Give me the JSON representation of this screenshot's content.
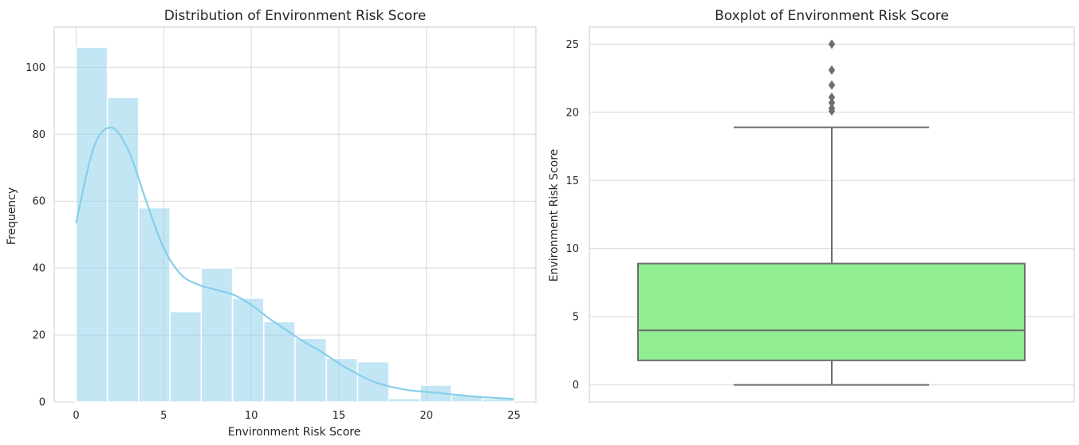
{
  "chart_data": [
    {
      "type": "bar",
      "title": "Distribution of Environment Risk Score",
      "xlabel": "Environment Risk Score",
      "ylabel": "Frequency",
      "xlim": [
        -1.25,
        26.25
      ],
      "ylim": [
        0,
        112
      ],
      "xticks": [
        0,
        5,
        10,
        15,
        20,
        25
      ],
      "yticks": [
        0,
        20,
        40,
        60,
        80,
        100
      ],
      "grid": true,
      "bar_color": "#87CEEB",
      "bins": [
        {
          "start": 0.0,
          "end": 1.786,
          "count": 106
        },
        {
          "start": 1.786,
          "end": 3.571,
          "count": 91
        },
        {
          "start": 3.571,
          "end": 5.357,
          "count": 58
        },
        {
          "start": 5.357,
          "end": 7.143,
          "count": 27
        },
        {
          "start": 7.143,
          "end": 8.929,
          "count": 40
        },
        {
          "start": 8.929,
          "end": 10.714,
          "count": 31
        },
        {
          "start": 10.714,
          "end": 12.5,
          "count": 24
        },
        {
          "start": 12.5,
          "end": 14.286,
          "count": 19
        },
        {
          "start": 14.286,
          "end": 16.071,
          "count": 13
        },
        {
          "start": 16.071,
          "end": 17.857,
          "count": 12
        },
        {
          "start": 17.857,
          "end": 19.643,
          "count": 1
        },
        {
          "start": 19.643,
          "end": 21.429,
          "count": 5
        },
        {
          "start": 21.429,
          "end": 23.214,
          "count": 2
        },
        {
          "start": 23.214,
          "end": 25.0,
          "count": 1
        }
      ],
      "kde": {
        "x": [
          0,
          1,
          2,
          3,
          4,
          5,
          6,
          7,
          8,
          9,
          10,
          11,
          12,
          13,
          14,
          15,
          16,
          17,
          18,
          19,
          20,
          21,
          22,
          23,
          24,
          25
        ],
        "y": [
          53.5,
          76,
          82,
          75,
          60,
          46,
          38,
          35,
          33.5,
          32,
          29,
          25,
          21.5,
          18,
          15,
          11.5,
          8.5,
          6,
          4.5,
          3.5,
          3,
          2.5,
          2,
          1.5,
          1.2,
          0.9
        ]
      }
    },
    {
      "type": "boxplot",
      "title": "Boxplot of Environment Risk Score",
      "ylabel": "Environment Risk Score",
      "ylim": [
        -1.25,
        26.25
      ],
      "yticks": [
        0,
        5,
        10,
        15,
        20,
        25
      ],
      "grid": true,
      "box_color": "#90EE90",
      "line_color": "#6e6e6e",
      "stats": {
        "whisker_low": 0,
        "q1": 1.8,
        "median": 4.0,
        "q3": 8.9,
        "whisker_high": 18.9
      },
      "outliers": [
        20.1,
        20.3,
        20.7,
        21.1,
        22.0,
        23.1,
        25.0
      ]
    }
  ]
}
